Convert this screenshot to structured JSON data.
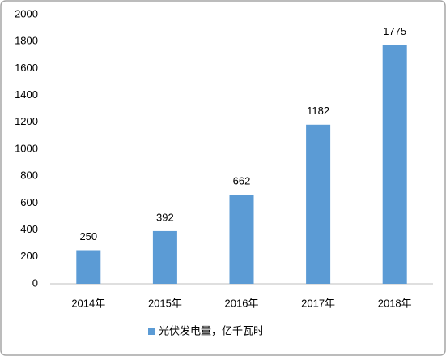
{
  "chart_data": {
    "type": "bar",
    "categories": [
      "2014年",
      "2015年",
      "2016年",
      "2017年",
      "2018年"
    ],
    "series": [
      {
        "name": "光伏发电量，亿千瓦时",
        "color": "#5b9bd5",
        "values": [
          250,
          392,
          662,
          1182,
          1775
        ]
      }
    ],
    "ylim": [
      0,
      2000
    ],
    "yticks": [
      0,
      200,
      400,
      600,
      800,
      1000,
      1200,
      1400,
      1600,
      1800,
      2000
    ],
    "grid": false,
    "legend": "bottom"
  }
}
